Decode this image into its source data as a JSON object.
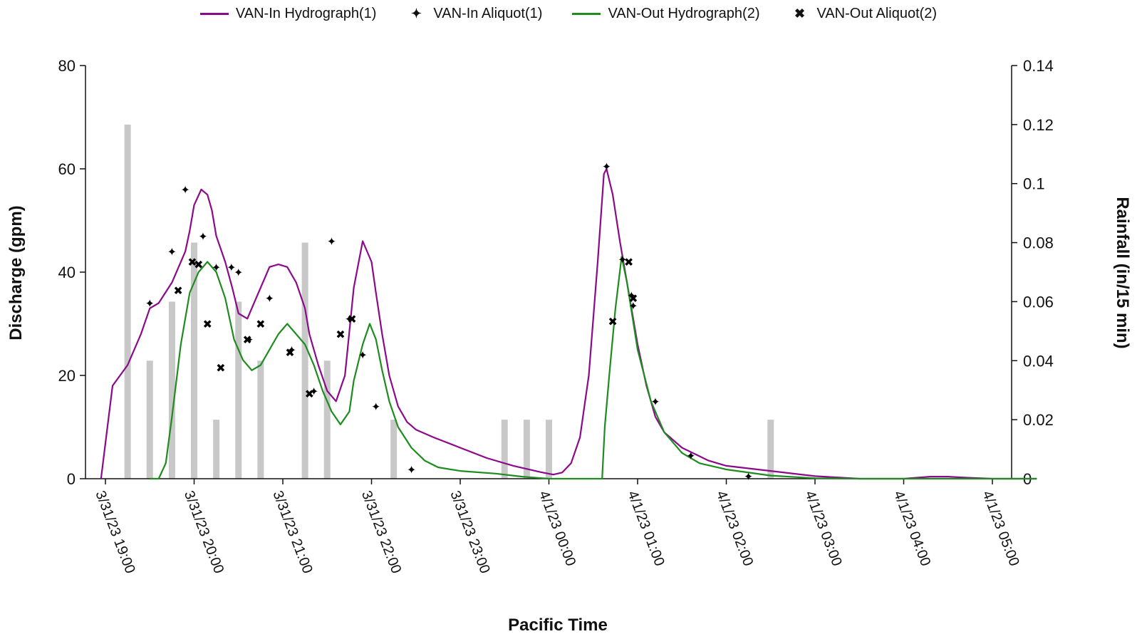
{
  "chart_data": {
    "type": "line",
    "xlabel": "Pacific Time",
    "ylabel": "Discharge (gpm)",
    "y2label": "Rainfall (in/15 min)",
    "x_ticks": [
      "3/31/23 19:00",
      "3/31/23 20:00",
      "3/31/23 21:00",
      "3/31/23 22:00",
      "3/31/23 23:00",
      "4/1/23 00:00",
      "4/1/23 01:00",
      "4/1/23 02:00",
      "4/1/23 03:00",
      "4/1/23 04:00",
      "4/1/23 05:00"
    ],
    "x_unit": "hours after 3/31/23 19:00",
    "xlim": [
      0,
      10.5
    ],
    "ylim": [
      0,
      80
    ],
    "y_ticks": [
      0,
      20,
      40,
      60,
      80
    ],
    "y2lim": [
      0,
      0.14
    ],
    "y2_ticks": [
      "0",
      "0.02",
      "0.04",
      "0.06",
      "0.08",
      "0.1",
      "0.12",
      "0.14"
    ],
    "legend_position": "top",
    "colors": {
      "van_in": "#8B0A8B",
      "van_out": "#1E8C1E",
      "rain": "#C8C8C8",
      "marker": "#000000"
    },
    "series": [
      {
        "name": "VAN-In Hydrograph(1)",
        "kind": "line",
        "color": "#8B0A8B",
        "points": [
          [
            -0.05,
            0
          ],
          [
            0.08,
            18
          ],
          [
            0.25,
            22
          ],
          [
            0.4,
            28
          ],
          [
            0.5,
            33
          ],
          [
            0.6,
            34
          ],
          [
            0.75,
            38
          ],
          [
            0.9,
            44
          ],
          [
            0.95,
            48
          ],
          [
            1.0,
            53
          ],
          [
            1.08,
            56
          ],
          [
            1.15,
            55
          ],
          [
            1.2,
            52
          ],
          [
            1.25,
            47
          ],
          [
            1.35,
            42
          ],
          [
            1.43,
            37
          ],
          [
            1.5,
            32
          ],
          [
            1.6,
            31
          ],
          [
            1.7,
            35
          ],
          [
            1.8,
            39
          ],
          [
            1.85,
            41
          ],
          [
            1.95,
            41.5
          ],
          [
            2.05,
            41
          ],
          [
            2.15,
            38
          ],
          [
            2.25,
            33
          ],
          [
            2.3,
            28
          ],
          [
            2.4,
            22
          ],
          [
            2.5,
            17
          ],
          [
            2.6,
            15
          ],
          [
            2.7,
            20
          ],
          [
            2.8,
            37
          ],
          [
            2.9,
            46
          ],
          [
            3.0,
            42
          ],
          [
            3.05,
            36
          ],
          [
            3.12,
            28
          ],
          [
            3.2,
            20
          ],
          [
            3.3,
            14
          ],
          [
            3.4,
            11
          ],
          [
            3.5,
            9.5
          ],
          [
            3.7,
            8
          ],
          [
            4.0,
            6
          ],
          [
            4.3,
            4
          ],
          [
            4.6,
            2.5
          ],
          [
            4.9,
            1.3
          ],
          [
            5.05,
            0.8
          ],
          [
            5.15,
            1.2
          ],
          [
            5.25,
            3
          ],
          [
            5.35,
            8
          ],
          [
            5.45,
            20
          ],
          [
            5.55,
            42
          ],
          [
            5.62,
            59
          ],
          [
            5.65,
            60
          ],
          [
            5.72,
            55
          ],
          [
            5.8,
            46
          ],
          [
            5.9,
            36
          ],
          [
            6.0,
            26
          ],
          [
            6.1,
            18
          ],
          [
            6.2,
            12
          ],
          [
            6.3,
            9
          ],
          [
            6.5,
            6
          ],
          [
            6.8,
            3.5
          ],
          [
            7.0,
            2.5
          ],
          [
            7.5,
            1.5
          ],
          [
            8.0,
            0.5
          ],
          [
            8.5,
            0
          ],
          [
            9.0,
            0
          ],
          [
            9.3,
            0.4
          ],
          [
            9.5,
            0.4
          ],
          [
            9.7,
            0.2
          ],
          [
            10.0,
            0
          ],
          [
            10.5,
            0
          ]
        ]
      },
      {
        "name": "VAN-In Aliquot(1)",
        "kind": "marker",
        "marker": "✦",
        "points": [
          [
            0.5,
            34
          ],
          [
            0.75,
            44
          ],
          [
            0.9,
            56
          ],
          [
            1.1,
            47
          ],
          [
            1.25,
            41
          ],
          [
            1.42,
            41
          ],
          [
            1.5,
            40
          ],
          [
            1.62,
            27
          ],
          [
            1.85,
            35
          ],
          [
            2.1,
            25
          ],
          [
            2.35,
            17
          ],
          [
            2.55,
            46
          ],
          [
            2.75,
            31
          ],
          [
            2.9,
            24
          ],
          [
            3.05,
            14
          ],
          [
            3.45,
            1.8
          ],
          [
            5.65,
            60.5
          ],
          [
            5.83,
            42.5
          ],
          [
            5.93,
            35.5
          ],
          [
            5.95,
            33.5
          ],
          [
            6.2,
            15
          ],
          [
            6.6,
            4.5
          ],
          [
            7.25,
            0.5
          ]
        ]
      },
      {
        "name": "VAN-Out Hydrograph(2)",
        "kind": "line",
        "color": "#1E8C1E",
        "points": [
          [
            0.5,
            0
          ],
          [
            0.6,
            0
          ],
          [
            0.68,
            3
          ],
          [
            0.75,
            12
          ],
          [
            0.85,
            26
          ],
          [
            0.95,
            36
          ],
          [
            1.05,
            40
          ],
          [
            1.15,
            42
          ],
          [
            1.25,
            40
          ],
          [
            1.35,
            35
          ],
          [
            1.45,
            27
          ],
          [
            1.55,
            23
          ],
          [
            1.65,
            21
          ],
          [
            1.75,
            22
          ],
          [
            1.85,
            25
          ],
          [
            1.95,
            28
          ],
          [
            2.05,
            30
          ],
          [
            2.15,
            28
          ],
          [
            2.25,
            26
          ],
          [
            2.35,
            22
          ],
          [
            2.45,
            17
          ],
          [
            2.55,
            13
          ],
          [
            2.65,
            10.5
          ],
          [
            2.75,
            13
          ],
          [
            2.8,
            19
          ],
          [
            2.9,
            26
          ],
          [
            2.98,
            30
          ],
          [
            3.05,
            27
          ],
          [
            3.12,
            21
          ],
          [
            3.2,
            15
          ],
          [
            3.3,
            10
          ],
          [
            3.45,
            6
          ],
          [
            3.6,
            3.5
          ],
          [
            3.75,
            2.2
          ],
          [
            4.0,
            1.5
          ],
          [
            4.4,
            1
          ],
          [
            4.7,
            0.4
          ],
          [
            5.0,
            0
          ],
          [
            5.5,
            0
          ],
          [
            5.6,
            0
          ],
          [
            5.63,
            10
          ],
          [
            5.68,
            20
          ],
          [
            5.75,
            33
          ],
          [
            5.82,
            43
          ],
          [
            5.88,
            38
          ],
          [
            6.0,
            25
          ],
          [
            6.15,
            15
          ],
          [
            6.3,
            9
          ],
          [
            6.5,
            5
          ],
          [
            6.7,
            3
          ],
          [
            7.0,
            1.8
          ],
          [
            7.5,
            0.6
          ],
          [
            8.0,
            0.1
          ],
          [
            8.5,
            0
          ],
          [
            10.5,
            0
          ]
        ]
      },
      {
        "name": "VAN-Out Aliquot(2)",
        "kind": "marker",
        "marker": "✖",
        "points": [
          [
            0.82,
            36.5
          ],
          [
            0.98,
            42
          ],
          [
            1.05,
            41.5
          ],
          [
            1.15,
            30
          ],
          [
            1.3,
            21.5
          ],
          [
            1.6,
            27
          ],
          [
            1.75,
            30
          ],
          [
            2.08,
            24.5
          ],
          [
            2.3,
            16.5
          ],
          [
            2.65,
            28
          ],
          [
            2.78,
            31
          ],
          [
            5.72,
            30.5
          ],
          [
            5.9,
            42
          ],
          [
            5.95,
            35
          ]
        ]
      }
    ],
    "rainfall": {
      "name": "Rainfall",
      "color": "#C8C8C8",
      "x": [
        0.25,
        0.5,
        0.75,
        1.0,
        1.25,
        1.5,
        1.75,
        2.25,
        2.5,
        3.25,
        4.5,
        4.75,
        5.0,
        7.5
      ],
      "values": [
        0.12,
        0.04,
        0.06,
        0.08,
        0.02,
        0.06,
        0.04,
        0.08,
        0.04,
        0.02,
        0.02,
        0.02,
        0.02,
        0.02
      ]
    }
  }
}
